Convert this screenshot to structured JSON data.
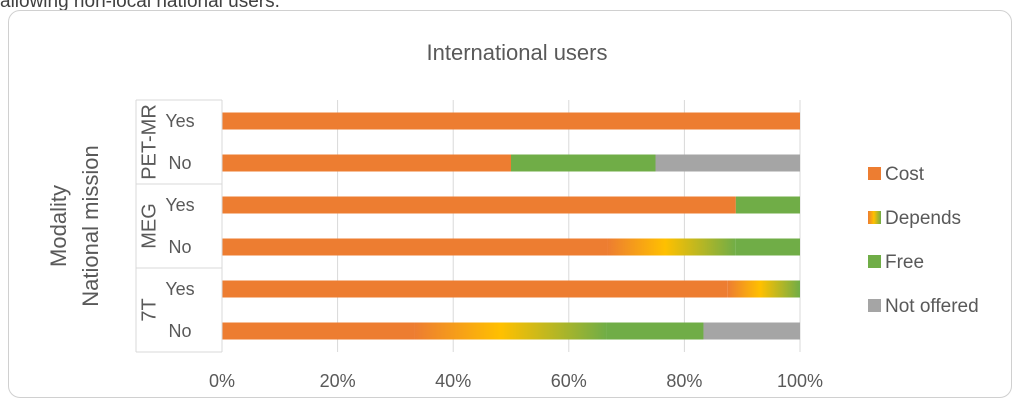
{
  "caption_text": "allowing non-local national users.",
  "chart_data": {
    "type": "bar",
    "orientation": "horizontal",
    "stacked": "percent",
    "title": "International users",
    "xlabel": "",
    "ylabel_outer": "Modality",
    "ylabel_inner": "National mission",
    "xlim": [
      0,
      100
    ],
    "x_ticks": [
      "0%",
      "20%",
      "40%",
      "60%",
      "80%",
      "100%"
    ],
    "grid": true,
    "legend_position": "right",
    "groups": [
      {
        "name": "PET-MR",
        "rows": [
          {
            "label": "Yes",
            "segments": [
              {
                "series": "Cost",
                "value": 100
              }
            ]
          },
          {
            "label": "No",
            "segments": [
              {
                "series": "Cost",
                "value": 50
              },
              {
                "series": "Free",
                "value": 25
              },
              {
                "series": "Not offered",
                "value": 25
              }
            ]
          }
        ]
      },
      {
        "name": "MEG",
        "rows": [
          {
            "label": "Yes",
            "segments": [
              {
                "series": "Cost",
                "value": 88.9
              },
              {
                "series": "Free",
                "value": 11.1
              }
            ]
          },
          {
            "label": "No",
            "segments": [
              {
                "series": "Cost",
                "value": 66.7
              },
              {
                "series": "Depends",
                "value": 22.2
              },
              {
                "series": "Free",
                "value": 11.1
              }
            ]
          }
        ]
      },
      {
        "name": "7T",
        "rows": [
          {
            "label": "Yes",
            "segments": [
              {
                "series": "Cost",
                "value": 87.5
              },
              {
                "series": "Depends",
                "value": 12.5
              }
            ]
          },
          {
            "label": "No",
            "segments": [
              {
                "series": "Cost",
                "value": 33.3
              },
              {
                "series": "Depends",
                "value": 33.3
              },
              {
                "series": "Free",
                "value": 16.7
              },
              {
                "series": "Not offered",
                "value": 16.7
              }
            ]
          }
        ]
      }
    ],
    "series": [
      {
        "name": "Cost",
        "color": "#ED7D31"
      },
      {
        "name": "Depends",
        "color": "#FFC000",
        "fill": "gradient"
      },
      {
        "name": "Free",
        "color": "#70AD47"
      },
      {
        "name": "Not offered",
        "color": "#A5A5A5"
      }
    ]
  }
}
